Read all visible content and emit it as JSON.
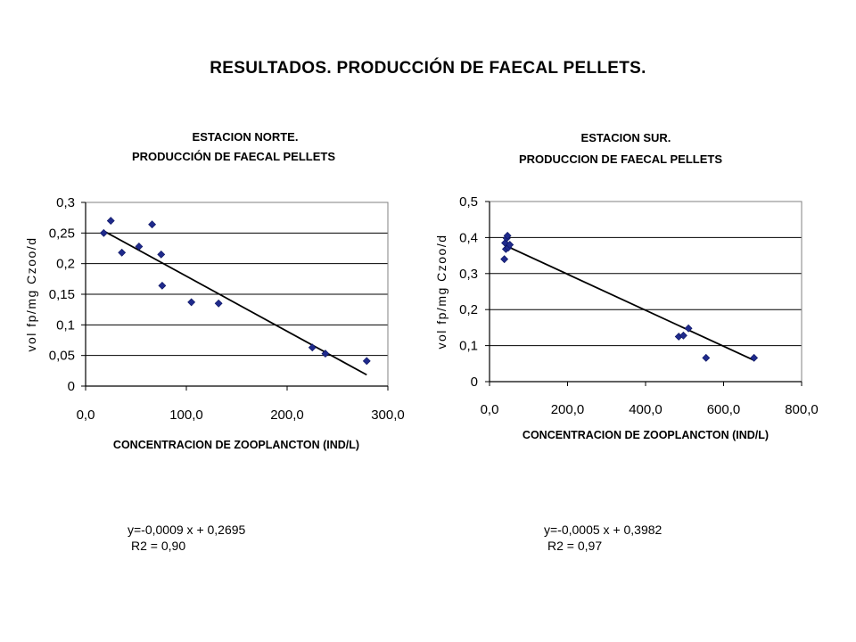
{
  "page": {
    "title": "RESULTADOS. PRODUCCIÓN DE FAECAL PELLETS."
  },
  "chart_data": [
    {
      "type": "scatter",
      "title": "ESTACION NORTE.",
      "subtitle": "PRODUCCIÓN DE FAECAL PELLETS",
      "xlabel": "CONCENTRACION DE ZOOPLANCTON (IND/L)",
      "ylabel": "vol fp/mg Czoo/d",
      "xlim": [
        0,
        300
      ],
      "ylim": [
        0,
        0.3
      ],
      "x_ticks": [
        0,
        100,
        200,
        300
      ],
      "x_tick_labels": [
        "0,0",
        "100,0",
        "200,0",
        "300,0"
      ],
      "y_ticks": [
        0,
        0.05,
        0.1,
        0.15,
        0.2,
        0.25,
        0.3
      ],
      "y_tick_labels": [
        "0",
        "0,05",
        "0,1",
        "0,15",
        "0,2",
        "0,25",
        "0,3"
      ],
      "grid": "horizontal",
      "points": [
        {
          "x": 18,
          "y": 0.25
        },
        {
          "x": 25,
          "y": 0.27
        },
        {
          "x": 36,
          "y": 0.218
        },
        {
          "x": 53,
          "y": 0.228
        },
        {
          "x": 66,
          "y": 0.264
        },
        {
          "x": 75,
          "y": 0.215
        },
        {
          "x": 76,
          "y": 0.164
        },
        {
          "x": 105,
          "y": 0.137
        },
        {
          "x": 132,
          "y": 0.135
        },
        {
          "x": 225,
          "y": 0.063
        },
        {
          "x": 238,
          "y": 0.053
        },
        {
          "x": 279,
          "y": 0.041
        }
      ],
      "trendline": {
        "slope": -0.0009,
        "intercept": 0.2695,
        "x_range": [
          18,
          279
        ]
      },
      "equation": "y=-0,0009 x + 0,2695",
      "r2": "R2 = 0,90"
    },
    {
      "type": "scatter",
      "title": "ESTACION SUR.",
      "subtitle": "PRODUCCION DE FAECAL PELLETS",
      "xlabel": "CONCENTRACION DE ZOOPLANCTON (IND/L)",
      "ylabel": "vol fp/mg Czoo/d",
      "xlim": [
        0,
        800
      ],
      "ylim": [
        0,
        0.5
      ],
      "x_ticks": [
        0,
        200,
        400,
        600,
        800
      ],
      "x_tick_labels": [
        "0,0",
        "200,0",
        "400,0",
        "600,0",
        "800,0"
      ],
      "y_ticks": [
        0,
        0.1,
        0.2,
        0.3,
        0.4,
        0.5
      ],
      "y_tick_labels": [
        "0",
        "0,1",
        "0,2",
        "0,3",
        "0,4",
        "0,5"
      ],
      "grid": "horizontal",
      "points": [
        {
          "x": 38,
          "y": 0.34
        },
        {
          "x": 40,
          "y": 0.385
        },
        {
          "x": 42,
          "y": 0.368
        },
        {
          "x": 44,
          "y": 0.398
        },
        {
          "x": 46,
          "y": 0.405
        },
        {
          "x": 48,
          "y": 0.372
        },
        {
          "x": 52,
          "y": 0.38
        },
        {
          "x": 485,
          "y": 0.125
        },
        {
          "x": 497,
          "y": 0.128
        },
        {
          "x": 510,
          "y": 0.148
        },
        {
          "x": 555,
          "y": 0.066
        },
        {
          "x": 678,
          "y": 0.066
        }
      ],
      "trendline": {
        "slope": -0.0005,
        "intercept": 0.3982,
        "x_range": [
          38,
          678
        ]
      },
      "equation": "y=-0,0005 x + 0,3982",
      "r2": "R2 = 0,97"
    }
  ]
}
